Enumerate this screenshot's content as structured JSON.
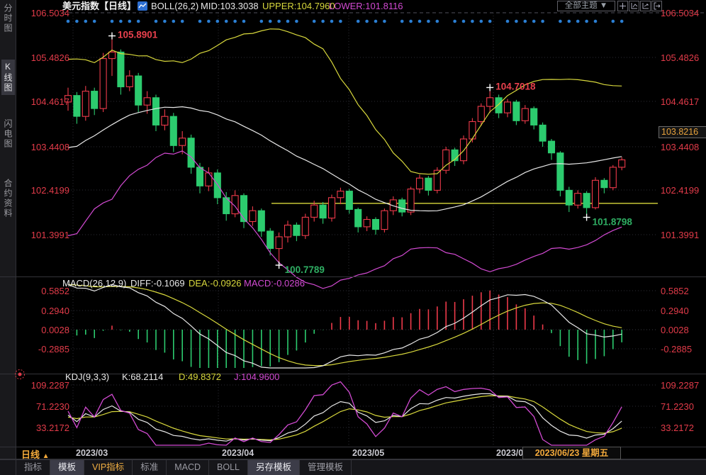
{
  "header": {
    "title": "美元指数【日线】",
    "indicator": "BOLL(26,2)",
    "mid_label": "MID:103.3038",
    "upper_label": "UPPER:104.7960",
    "lower_label": "LOWER:101.8116",
    "theme_dropdown": "全部主题",
    "dropdown_arrow": "▼"
  },
  "sidebar": {
    "items": [
      {
        "label": "分时图",
        "active": false
      },
      {
        "label": "K线图",
        "active": true
      },
      {
        "label": "闪电图",
        "active": false
      },
      {
        "label": "合约资料",
        "active": false
      }
    ]
  },
  "main_axis": {
    "labels": [
      "106.5034",
      "105.4826",
      "104.4617",
      "103.4408",
      "102.4199",
      "101.3991"
    ],
    "price_badge": "103.8216"
  },
  "macd": {
    "name": "MACD(26,12,9)",
    "diff_label": "DIFF:-0.1069",
    "dea_label": "DEA:-0.0926",
    "macd_label": "MACD:-0.0286",
    "axis": [
      "0.5852",
      "0.2940",
      "0.0028",
      "-0.2885"
    ]
  },
  "kdj": {
    "name": "KDJ(9,3,3)",
    "k_label": "K:68.2114",
    "d_label": "D:49.8372",
    "j_label": "J:104.9600",
    "axis": [
      "109.2287",
      "71.2230",
      "33.2172"
    ]
  },
  "xaxis": {
    "period_label": "日线",
    "period_arrow": "▲",
    "current_date": "2023/06/23 星期五"
  },
  "tabs": [
    {
      "label": "指标"
    },
    {
      "label": "模板"
    },
    {
      "label": "VIP指标"
    },
    {
      "label": "标准"
    },
    {
      "label": "MACD"
    },
    {
      "label": "BOLL"
    },
    {
      "label": "另存模板"
    },
    {
      "label": "管理模板"
    }
  ],
  "colors": {
    "up": "#ee3a4a",
    "down": "#2ccb6e",
    "boll_upper": "#d8d83c",
    "boll_mid": "#e8e8e8",
    "boll_lower": "#d24ad2",
    "axis_text": "#e23b49",
    "annotation_red": "#e8404d",
    "annotation_green": "#2fae63",
    "event_dot": "#2b7fd4",
    "accent_orange": "#f2a93b",
    "grid": "#2c2c34"
  },
  "chart_data": {
    "type": "candlestick",
    "title": "美元指数 日线",
    "yticks": [
      106.5034,
      105.4826,
      104.4617,
      103.4408,
      102.4199,
      101.3991
    ],
    "ylim": [
      100.52,
      106.7
    ],
    "months": [
      {
        "label": "2023/03",
        "x": 103
      },
      {
        "label": "2023/04",
        "x": 308
      },
      {
        "label": "2023/05",
        "x": 492
      },
      {
        "label": "2023/06",
        "x": 696
      }
    ],
    "hline_price": 102.12,
    "boll": {
      "period": 26,
      "mult": 2
    },
    "macd_params": {
      "fast": 12,
      "slow": 26,
      "signal": 9
    },
    "macd_yticks": [
      0.5852,
      0.294,
      0.0028,
      -0.2885
    ],
    "kdj_params": {
      "n": 9,
      "m1": 3,
      "m2": 3
    },
    "kdj_yticks": [
      109.2287,
      71.223,
      33.2172
    ],
    "annotations": [
      {
        "i": 5,
        "at": "high",
        "text": "105.8901",
        "color": "#e8404d"
      },
      {
        "i": 48,
        "at": "high",
        "text": "104.7018",
        "color": "#e8404d"
      },
      {
        "i": 24,
        "at": "low",
        "text": "100.7789",
        "color": "#2fae63"
      },
      {
        "i": 59,
        "at": "low",
        "text": "101.8798",
        "color": "#2fae63"
      }
    ],
    "event_dot_skip": [
      4,
      9,
      14,
      21,
      27,
      32,
      37,
      43,
      49,
      55,
      61
    ],
    "pre_closes": [
      101.2,
      101.5,
      102.0,
      102.4,
      101.8,
      102.3,
      102.9,
      103.3,
      102.8,
      103.3,
      103.6,
      103.2,
      103.7,
      104.0,
      103.6,
      104.1,
      104.3,
      104.0,
      104.4,
      104.5,
      104.2,
      104.5,
      104.4,
      104.5
    ],
    "candles": [
      [
        104.45,
        104.78,
        104.25,
        104.6
      ],
      [
        104.6,
        104.68,
        103.95,
        104.12
      ],
      [
        104.12,
        104.82,
        104.02,
        104.7
      ],
      [
        104.7,
        104.78,
        104.15,
        104.3
      ],
      [
        104.3,
        105.58,
        104.22,
        105.45
      ],
      [
        105.45,
        105.8901,
        105.05,
        105.6
      ],
      [
        105.6,
        105.66,
        104.62,
        104.8
      ],
      [
        104.8,
        105.18,
        104.7,
        105.05
      ],
      [
        105.05,
        105.12,
        104.22,
        104.38
      ],
      [
        104.38,
        104.7,
        104.18,
        104.55
      ],
      [
        104.55,
        104.62,
        103.78,
        103.92
      ],
      [
        103.92,
        104.28,
        103.8,
        104.12
      ],
      [
        104.12,
        104.2,
        103.3,
        103.45
      ],
      [
        103.45,
        103.78,
        103.25,
        103.62
      ],
      [
        103.62,
        103.7,
        102.8,
        102.95
      ],
      [
        102.95,
        103.05,
        102.35,
        102.52
      ],
      [
        102.52,
        102.95,
        102.4,
        102.82
      ],
      [
        102.82,
        102.9,
        102.1,
        102.25
      ],
      [
        102.25,
        102.38,
        101.72,
        101.88
      ],
      [
        101.88,
        102.42,
        101.8,
        102.3
      ],
      [
        102.3,
        102.35,
        101.55,
        101.7
      ],
      [
        101.7,
        102.05,
        101.6,
        101.95
      ],
      [
        101.95,
        102.0,
        101.35,
        101.48
      ],
      [
        101.48,
        101.55,
        100.92,
        101.08
      ],
      [
        101.08,
        101.45,
        100.7789,
        101.35
      ],
      [
        101.35,
        101.72,
        101.22,
        101.62
      ],
      [
        101.62,
        101.68,
        101.25,
        101.38
      ],
      [
        101.38,
        101.88,
        101.3,
        101.8
      ],
      [
        101.8,
        102.18,
        101.7,
        102.08
      ],
      [
        102.08,
        102.15,
        101.65,
        101.78
      ],
      [
        101.78,
        102.32,
        101.7,
        102.25
      ],
      [
        102.25,
        102.48,
        102.1,
        102.4
      ],
      [
        102.4,
        102.45,
        101.88,
        101.98
      ],
      [
        101.98,
        102.02,
        101.45,
        101.58
      ],
      [
        101.58,
        101.82,
        101.48,
        101.75
      ],
      [
        101.75,
        101.8,
        101.4,
        101.52
      ],
      [
        101.52,
        102.0,
        101.45,
        101.95
      ],
      [
        101.95,
        102.28,
        101.85,
        102.2
      ],
      [
        102.2,
        102.25,
        101.82,
        101.92
      ],
      [
        101.92,
        102.5,
        101.85,
        102.45
      ],
      [
        102.45,
        102.78,
        102.35,
        102.7
      ],
      [
        102.7,
        102.75,
        102.3,
        102.42
      ],
      [
        102.42,
        102.95,
        102.35,
        102.88
      ],
      [
        102.88,
        103.42,
        102.8,
        103.35
      ],
      [
        103.35,
        103.4,
        102.98,
        103.1
      ],
      [
        103.1,
        103.68,
        103.02,
        103.6
      ],
      [
        103.6,
        104.08,
        103.52,
        104.0
      ],
      [
        104.0,
        104.42,
        103.9,
        104.35
      ],
      [
        104.35,
        104.7018,
        104.2,
        104.55
      ],
      [
        104.55,
        104.62,
        104.08,
        104.2
      ],
      [
        104.2,
        104.52,
        104.1,
        104.45
      ],
      [
        104.45,
        104.5,
        103.92,
        104.02
      ],
      [
        104.02,
        104.38,
        103.95,
        104.3
      ],
      [
        104.3,
        104.35,
        103.82,
        103.92
      ],
      [
        103.92,
        103.98,
        103.42,
        103.55
      ],
      [
        103.55,
        103.6,
        103.12,
        103.28
      ],
      [
        103.28,
        103.32,
        102.28,
        102.42
      ],
      [
        102.42,
        102.5,
        101.92,
        102.08
      ],
      [
        102.08,
        102.42,
        102.0,
        102.35
      ],
      [
        102.35,
        102.4,
        101.8798,
        102.02
      ],
      [
        102.02,
        102.72,
        101.98,
        102.65
      ],
      [
        102.65,
        102.7,
        102.35,
        102.48
      ],
      [
        102.48,
        103.0,
        102.42,
        102.95
      ],
      [
        102.95,
        103.18,
        102.88,
        103.12
      ]
    ]
  }
}
